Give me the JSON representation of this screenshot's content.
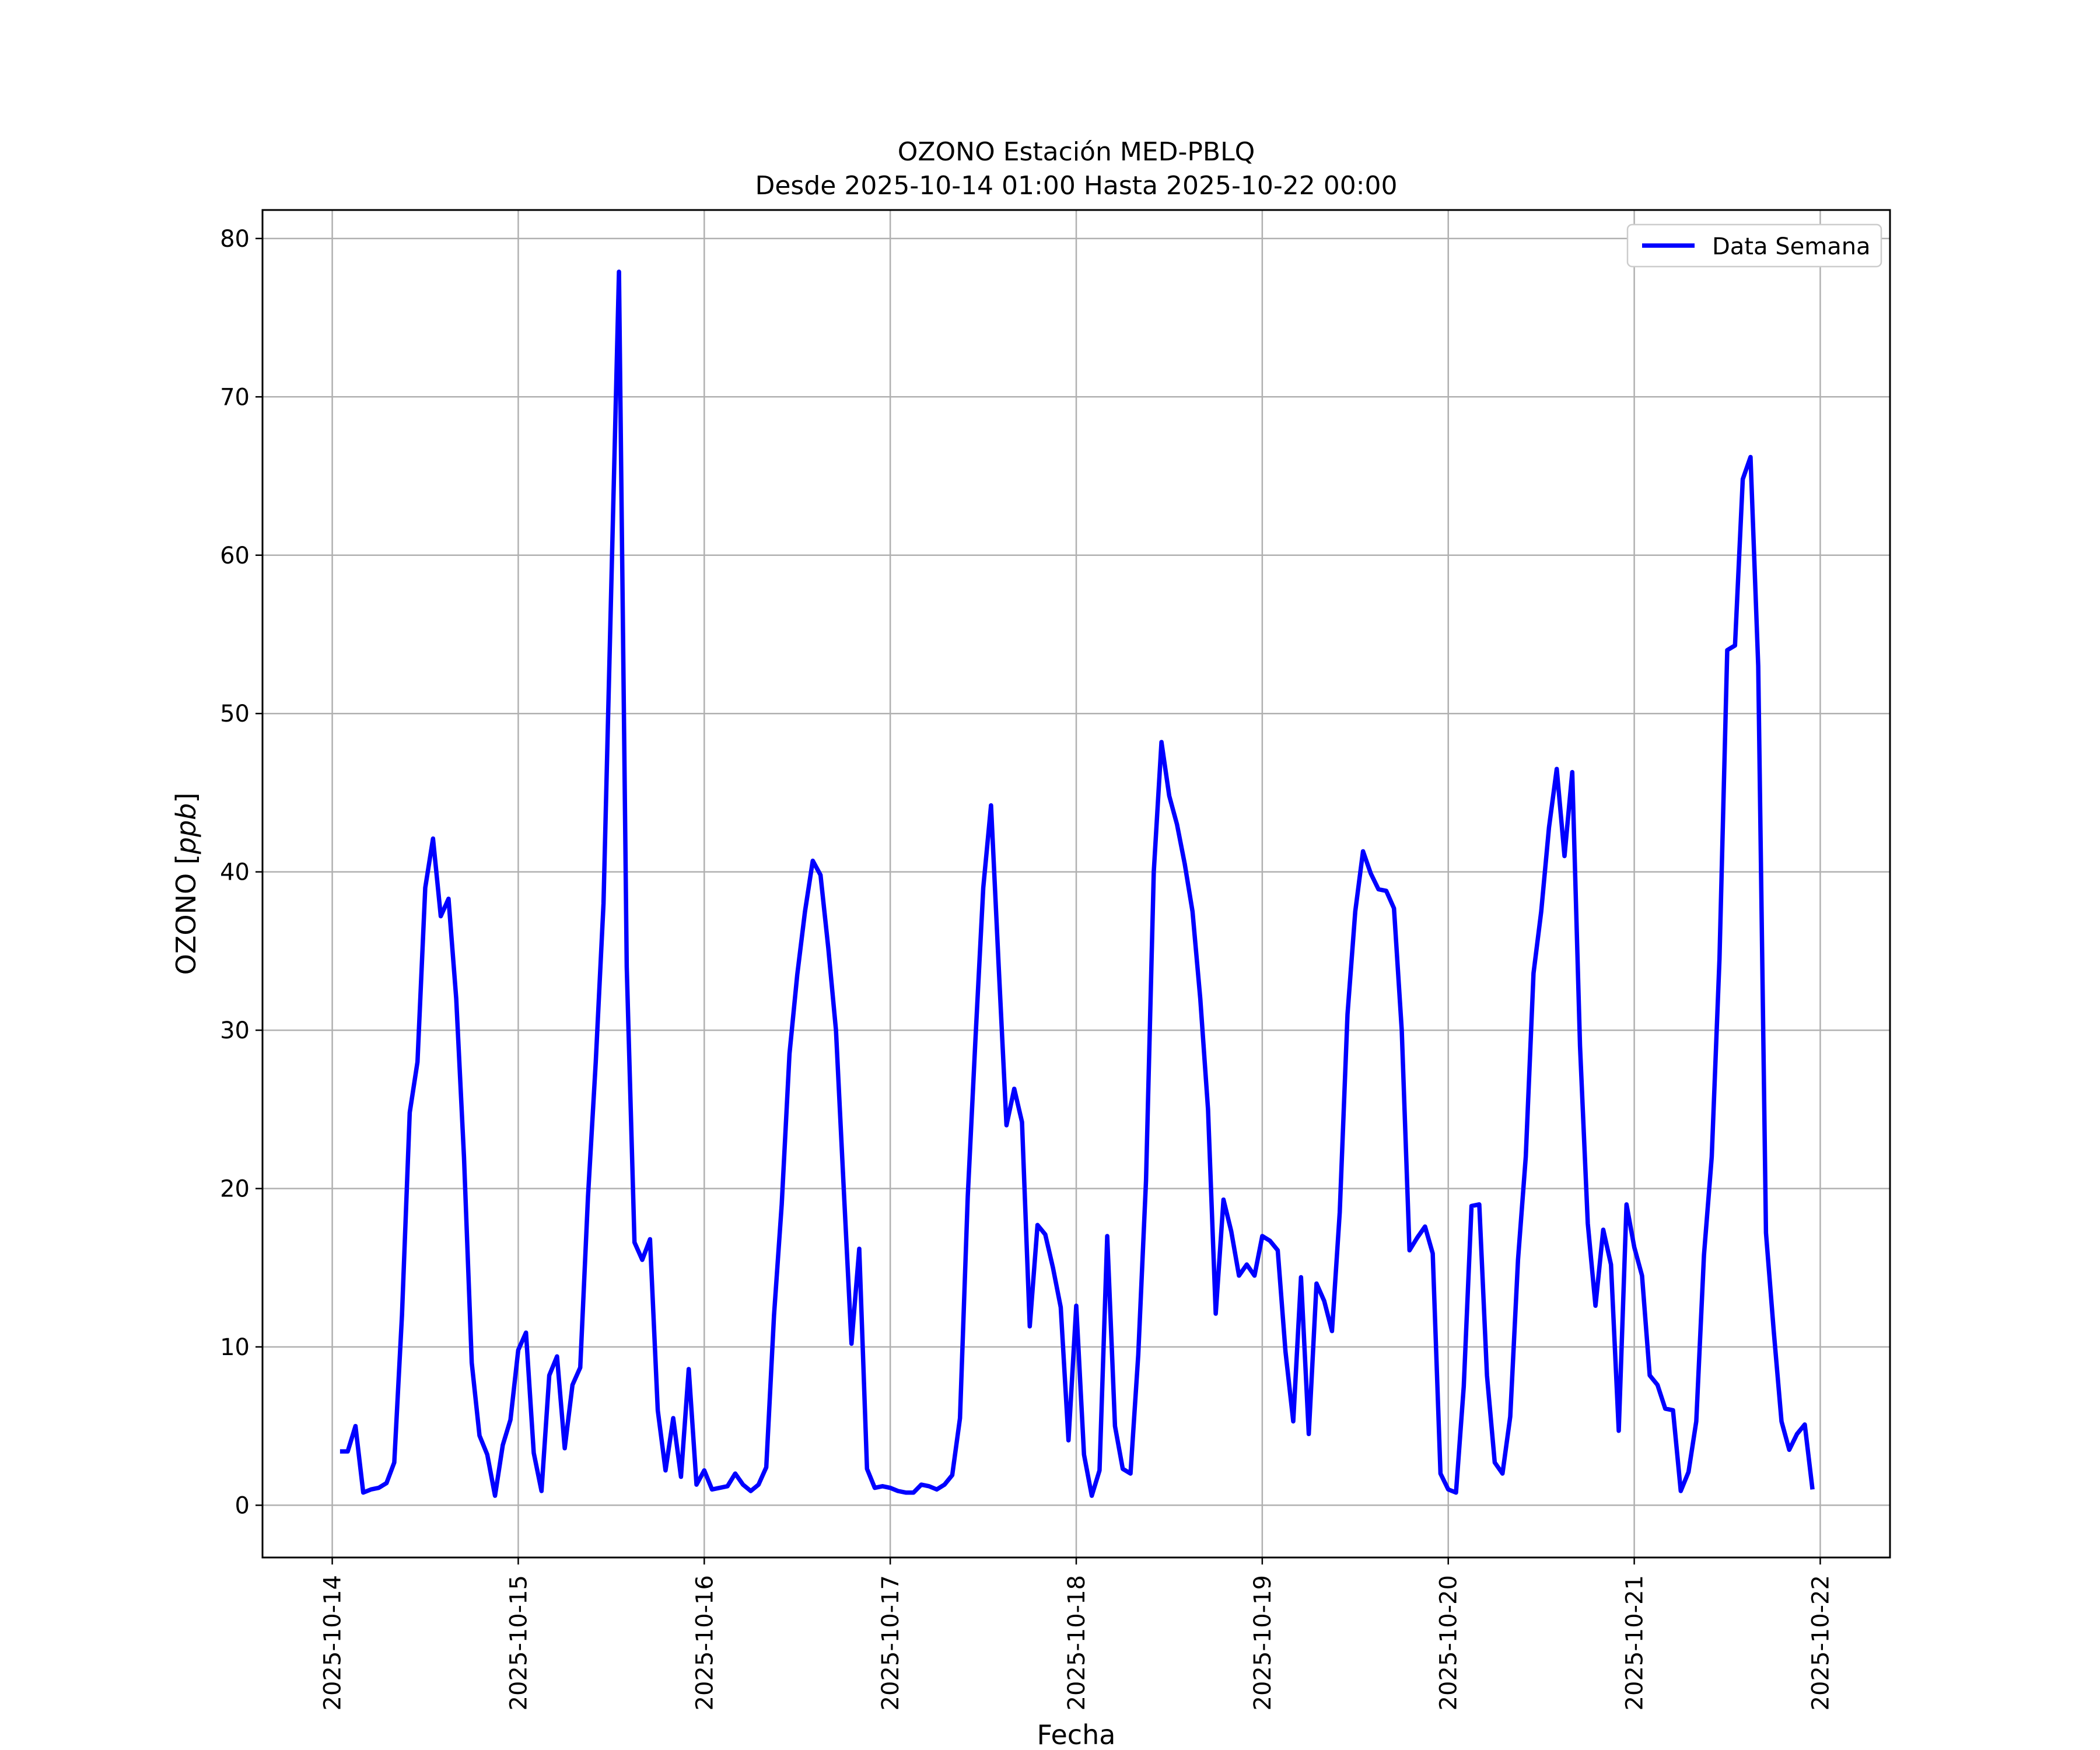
{
  "chart_data": {
    "type": "line",
    "title": "OZONO Estación MED-PBLQ",
    "subtitle": "Desde 2025-10-14 01:00 Hasta 2025-10-22 00:00",
    "xlabel": "Fecha",
    "ylabel": "OZONO [",
    "ylabel_unit": "ppb",
    "ylabel_close": "]",
    "xlim": [
      "2025-10-13 15:00",
      "2025-10-22 09:00"
    ],
    "ylim": [
      -3.3,
      81.8
    ],
    "yticks": [
      0,
      10,
      20,
      30,
      40,
      50,
      60,
      70,
      80
    ],
    "xticks": [
      "2025-10-14",
      "2025-10-15",
      "2025-10-16",
      "2025-10-17",
      "2025-10-18",
      "2025-10-19",
      "2025-10-20",
      "2025-10-21",
      "2025-10-22"
    ],
    "grid": true,
    "legend_position": "upper-right",
    "line_color": "#0000ff",
    "series": [
      {
        "name": "Data Semana",
        "x": [
          "2025-10-14 01:00",
          "2025-10-14 02:00",
          "2025-10-14 03:00",
          "2025-10-14 04:00",
          "2025-10-14 05:00",
          "2025-10-14 06:00",
          "2025-10-14 07:00",
          "2025-10-14 08:00",
          "2025-10-14 09:00",
          "2025-10-14 10:00",
          "2025-10-14 11:00",
          "2025-10-14 12:00",
          "2025-10-14 13:00",
          "2025-10-14 14:00",
          "2025-10-14 15:00",
          "2025-10-14 16:00",
          "2025-10-14 17:00",
          "2025-10-14 18:00",
          "2025-10-14 19:00",
          "2025-10-14 20:00",
          "2025-10-14 21:00",
          "2025-10-14 22:00",
          "2025-10-14 23:00",
          "2025-10-15 00:00",
          "2025-10-15 01:00",
          "2025-10-15 02:00",
          "2025-10-15 03:00",
          "2025-10-15 04:00",
          "2025-10-15 05:00",
          "2025-10-15 06:00",
          "2025-10-15 07:00",
          "2025-10-15 08:00",
          "2025-10-15 09:00",
          "2025-10-15 10:00",
          "2025-10-15 11:00",
          "2025-10-15 12:00",
          "2025-10-15 13:00",
          "2025-10-15 14:00",
          "2025-10-15 15:00",
          "2025-10-15 16:00",
          "2025-10-15 17:00",
          "2025-10-15 18:00",
          "2025-10-15 19:00",
          "2025-10-15 20:00",
          "2025-10-15 21:00",
          "2025-10-15 22:00",
          "2025-10-15 23:00",
          "2025-10-16 00:00",
          "2025-10-16 01:00",
          "2025-10-16 02:00",
          "2025-10-16 03:00",
          "2025-10-16 04:00",
          "2025-10-16 05:00",
          "2025-10-16 06:00",
          "2025-10-16 07:00",
          "2025-10-16 08:00",
          "2025-10-16 09:00",
          "2025-10-16 10:00",
          "2025-10-16 11:00",
          "2025-10-16 12:00",
          "2025-10-16 13:00",
          "2025-10-16 14:00",
          "2025-10-16 15:00",
          "2025-10-16 16:00",
          "2025-10-16 17:00",
          "2025-10-16 18:00",
          "2025-10-16 19:00",
          "2025-10-16 20:00",
          "2025-10-16 21:00",
          "2025-10-16 22:00",
          "2025-10-16 23:00",
          "2025-10-17 00:00",
          "2025-10-17 01:00",
          "2025-10-17 02:00",
          "2025-10-17 03:00",
          "2025-10-17 04:00",
          "2025-10-17 05:00",
          "2025-10-17 06:00",
          "2025-10-17 07:00",
          "2025-10-17 08:00",
          "2025-10-17 09:00",
          "2025-10-17 10:00",
          "2025-10-17 11:00",
          "2025-10-17 12:00",
          "2025-10-17 13:00",
          "2025-10-17 14:00",
          "2025-10-17 15:00",
          "2025-10-17 16:00",
          "2025-10-17 17:00",
          "2025-10-17 18:00",
          "2025-10-17 19:00",
          "2025-10-17 20:00",
          "2025-10-17 21:00",
          "2025-10-17 22:00",
          "2025-10-17 23:00",
          "2025-10-18 00:00",
          "2025-10-18 01:00",
          "2025-10-18 02:00",
          "2025-10-18 03:00",
          "2025-10-18 04:00",
          "2025-10-18 05:00",
          "2025-10-18 06:00",
          "2025-10-18 07:00",
          "2025-10-18 08:00",
          "2025-10-18 09:00",
          "2025-10-18 10:00",
          "2025-10-18 11:00",
          "2025-10-18 12:00",
          "2025-10-18 13:00",
          "2025-10-18 14:00",
          "2025-10-18 15:00",
          "2025-10-18 16:00",
          "2025-10-18 17:00",
          "2025-10-18 18:00",
          "2025-10-18 19:00",
          "2025-10-18 20:00",
          "2025-10-18 21:00",
          "2025-10-18 22:00",
          "2025-10-18 23:00",
          "2025-10-19 00:00",
          "2025-10-19 01:00",
          "2025-10-19 02:00",
          "2025-10-19 03:00",
          "2025-10-19 04:00",
          "2025-10-19 05:00",
          "2025-10-19 06:00",
          "2025-10-19 07:00",
          "2025-10-19 08:00",
          "2025-10-19 09:00",
          "2025-10-19 10:00",
          "2025-10-19 11:00",
          "2025-10-19 12:00",
          "2025-10-19 13:00",
          "2025-10-19 14:00",
          "2025-10-19 15:00",
          "2025-10-19 16:00",
          "2025-10-19 17:00",
          "2025-10-19 18:00",
          "2025-10-19 19:00",
          "2025-10-19 20:00",
          "2025-10-19 21:00",
          "2025-10-19 22:00",
          "2025-10-19 23:00",
          "2025-10-20 00:00",
          "2025-10-20 01:00",
          "2025-10-20 02:00",
          "2025-10-20 03:00",
          "2025-10-20 04:00",
          "2025-10-20 05:00",
          "2025-10-20 06:00",
          "2025-10-20 07:00",
          "2025-10-20 08:00",
          "2025-10-20 09:00",
          "2025-10-20 10:00",
          "2025-10-20 11:00",
          "2025-10-20 12:00",
          "2025-10-20 13:00",
          "2025-10-20 14:00",
          "2025-10-20 15:00",
          "2025-10-20 16:00",
          "2025-10-20 17:00",
          "2025-10-20 18:00",
          "2025-10-20 19:00",
          "2025-10-20 20:00",
          "2025-10-20 21:00",
          "2025-10-20 22:00",
          "2025-10-20 23:00",
          "2025-10-21 00:00",
          "2025-10-21 01:00",
          "2025-10-21 02:00",
          "2025-10-21 03:00",
          "2025-10-21 04:00",
          "2025-10-21 05:00",
          "2025-10-21 06:00",
          "2025-10-21 07:00",
          "2025-10-21 08:00",
          "2025-10-21 09:00",
          "2025-10-21 10:00",
          "2025-10-21 11:00",
          "2025-10-21 12:00",
          "2025-10-21 13:00",
          "2025-10-21 14:00",
          "2025-10-21 15:00",
          "2025-10-21 16:00",
          "2025-10-21 17:00",
          "2025-10-21 18:00",
          "2025-10-21 19:00",
          "2025-10-21 20:00",
          "2025-10-21 21:00",
          "2025-10-21 22:00",
          "2025-10-21 23:00"
        ],
        "values": [
          3.4,
          3.4,
          5.0,
          0.8,
          1.0,
          1.1,
          1.4,
          2.7,
          12.0,
          24.8,
          28.0,
          39.0,
          42.1,
          37.2,
          38.3,
          32.0,
          22.0,
          9.0,
          4.4,
          3.2,
          0.6,
          3.8,
          5.4,
          9.8,
          10.9,
          3.3,
          0.9,
          8.2,
          9.4,
          3.6,
          7.6,
          8.7,
          19.5,
          28.0,
          38.0,
          58.0,
          77.9,
          34.0,
          16.6,
          15.5,
          16.8,
          6.0,
          2.2,
          5.5,
          1.8,
          8.6,
          1.3,
          2.2,
          1.0,
          1.1,
          1.2,
          2.0,
          1.3,
          0.9,
          1.3,
          2.4,
          12.0,
          19.0,
          28.5,
          33.5,
          37.5,
          40.7,
          39.8,
          35.2,
          30.0,
          20.0,
          10.2,
          16.2,
          2.3,
          1.1,
          1.2,
          1.1,
          0.9,
          0.8,
          0.8,
          1.3,
          1.2,
          1.0,
          1.3,
          1.9,
          5.5,
          19.5,
          29.5,
          39.0,
          44.2,
          34.0,
          24.0,
          26.3,
          24.2,
          11.3,
          17.7,
          17.1,
          15.0,
          12.5,
          4.1,
          12.6,
          3.2,
          0.6,
          2.2,
          17.0,
          5.0,
          2.3,
          2.0,
          9.5,
          20.5,
          40.0,
          48.2,
          44.8,
          43.0,
          40.5,
          37.5,
          32.0,
          25.0,
          12.1,
          19.3,
          17.3,
          14.5,
          15.2,
          14.5,
          17.0,
          16.7,
          16.1,
          9.7,
          5.3,
          14.4,
          4.5,
          14.0,
          12.9,
          11.0,
          18.5,
          31.0,
          37.5,
          41.3,
          39.9,
          38.9,
          38.8,
          37.7,
          30.0,
          16.1,
          16.9,
          17.6,
          15.9,
          2.0,
          1.0,
          0.8,
          7.5,
          18.9,
          19.0,
          8.2,
          2.7,
          2.0,
          5.6,
          15.5,
          22.0,
          33.6,
          37.5,
          42.8,
          46.5,
          41.0,
          46.3,
          29.0,
          17.8,
          12.6,
          17.4,
          15.2,
          4.7,
          19.0,
          16.3,
          14.5,
          8.2,
          7.6,
          6.1,
          6.0,
          0.9,
          2.1,
          5.3,
          15.8,
          22.0,
          34.5,
          54.0,
          54.3,
          64.8,
          66.2,
          53.0,
          17.2,
          11.0,
          5.3,
          3.5,
          4.5,
          5.1,
          1.0
        ]
      }
    ]
  }
}
